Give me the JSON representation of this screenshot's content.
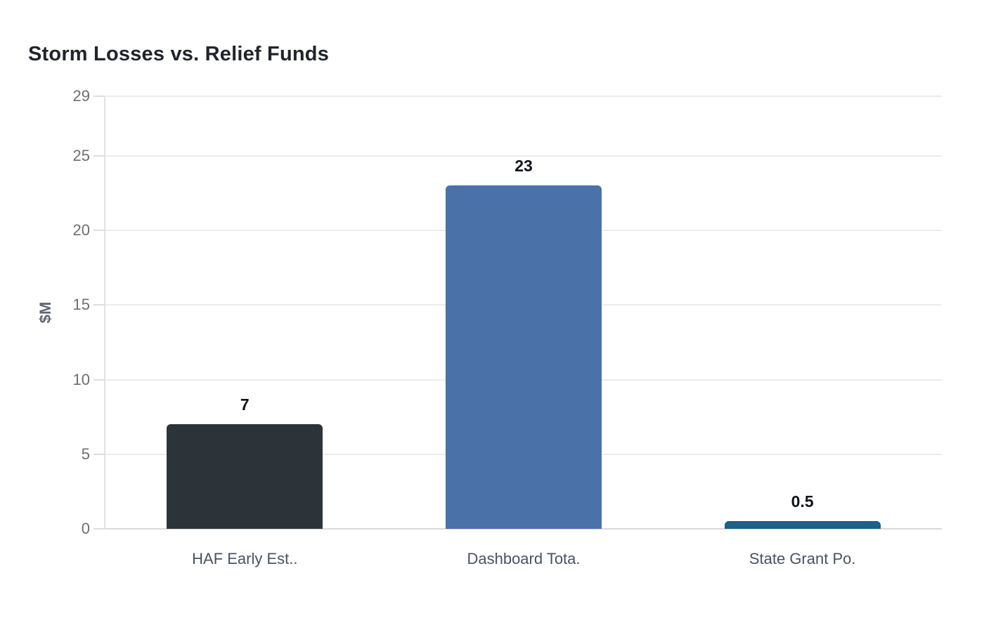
{
  "title": "Storm Losses vs. Relief Funds",
  "chart_data": {
    "type": "bar",
    "title": "Storm Losses vs. Relief Funds",
    "xlabel": "",
    "ylabel": "$M",
    "categories": [
      "HAF Early Est..",
      "Dashboard Tota.",
      "State Grant Po."
    ],
    "values": [
      7,
      23,
      0.5
    ],
    "value_labels": [
      "7",
      "23",
      "0.5"
    ],
    "bar_colors": [
      "#2c343a",
      "#4a72a8",
      "#1e5f87"
    ],
    "ylim": [
      0,
      29
    ],
    "yticks": [
      0,
      5,
      10,
      15,
      20,
      25,
      29
    ],
    "grid": true,
    "legend": false
  },
  "colors": {
    "background": "#ffffff",
    "title_text": "#20242b",
    "gridline": "#ececec",
    "axis": "#dedede",
    "tick_label_text": "#6e6e6e",
    "category_label_text": "#4a5361",
    "value_label_text": "#10141a",
    "y_axis_title_text": "#5d6570"
  }
}
